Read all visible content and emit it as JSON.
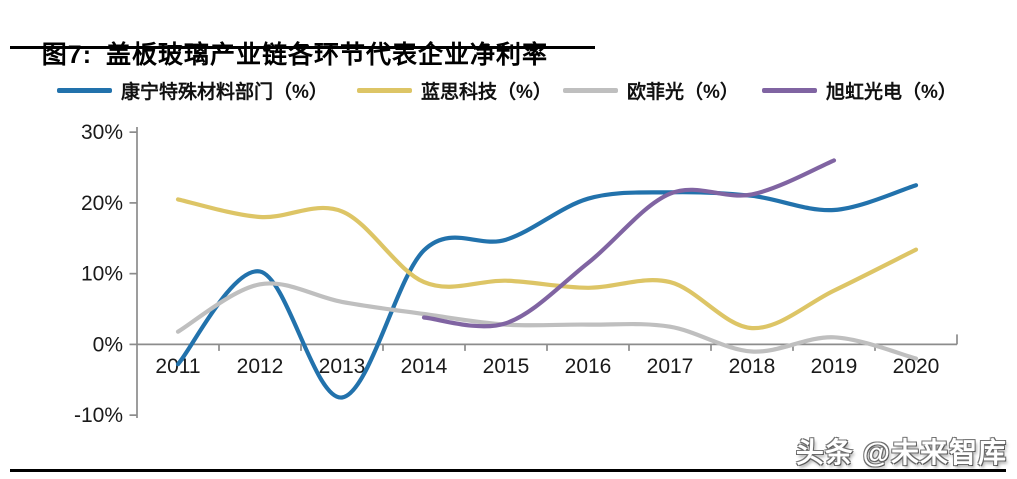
{
  "header": {
    "figure_label": "图7:",
    "title": "盖板玻璃产业链各环节代表企业净利率"
  },
  "chart_data": {
    "type": "line",
    "title": "盖板玻璃产业链各环节代表企业净利率",
    "x_labels": [
      "2011",
      "2012",
      "2013",
      "2014",
      "2015",
      "2016",
      "2017",
      "2018",
      "2019",
      "2020"
    ],
    "ylim": [
      -10,
      30
    ],
    "yticks": [
      {
        "v": 30,
        "label": "30%"
      },
      {
        "v": 20,
        "label": "20%"
      },
      {
        "v": 10,
        "label": "10%"
      },
      {
        "v": 0,
        "label": "0%"
      },
      {
        "v": -10,
        "label": "-10%"
      }
    ],
    "grid": false,
    "legend_position": "top",
    "series": [
      {
        "name": "康宁特殊材料部门（%）",
        "color": "#2272AC",
        "values": [
          -2.8,
          10.3,
          -7.5,
          13.3,
          14.8,
          20.6,
          21.5,
          21,
          19,
          22.5
        ]
      },
      {
        "name": "蓝思科技（%）",
        "color": "#DDC566",
        "values": [
          20.5,
          18,
          18.8,
          8.8,
          9,
          8,
          8.8,
          2.3,
          7.6,
          13.4
        ]
      },
      {
        "name": "欧菲光（%）",
        "color": "#BFBFBF",
        "values": [
          1.8,
          8.5,
          6,
          4.3,
          2.8,
          2.8,
          2.5,
          -1,
          1,
          -2
        ]
      },
      {
        "name": "旭虹光电（%）",
        "color": "#8064A2",
        "values": [
          null,
          null,
          null,
          3.8,
          3,
          11.5,
          21.3,
          21.2,
          26,
          null
        ]
      }
    ]
  },
  "style_colors": {
    "axis": "#8C8C8C",
    "tick_text": "#1A1A1A"
  },
  "footer": {
    "watermark": "头条 @未来智库"
  }
}
